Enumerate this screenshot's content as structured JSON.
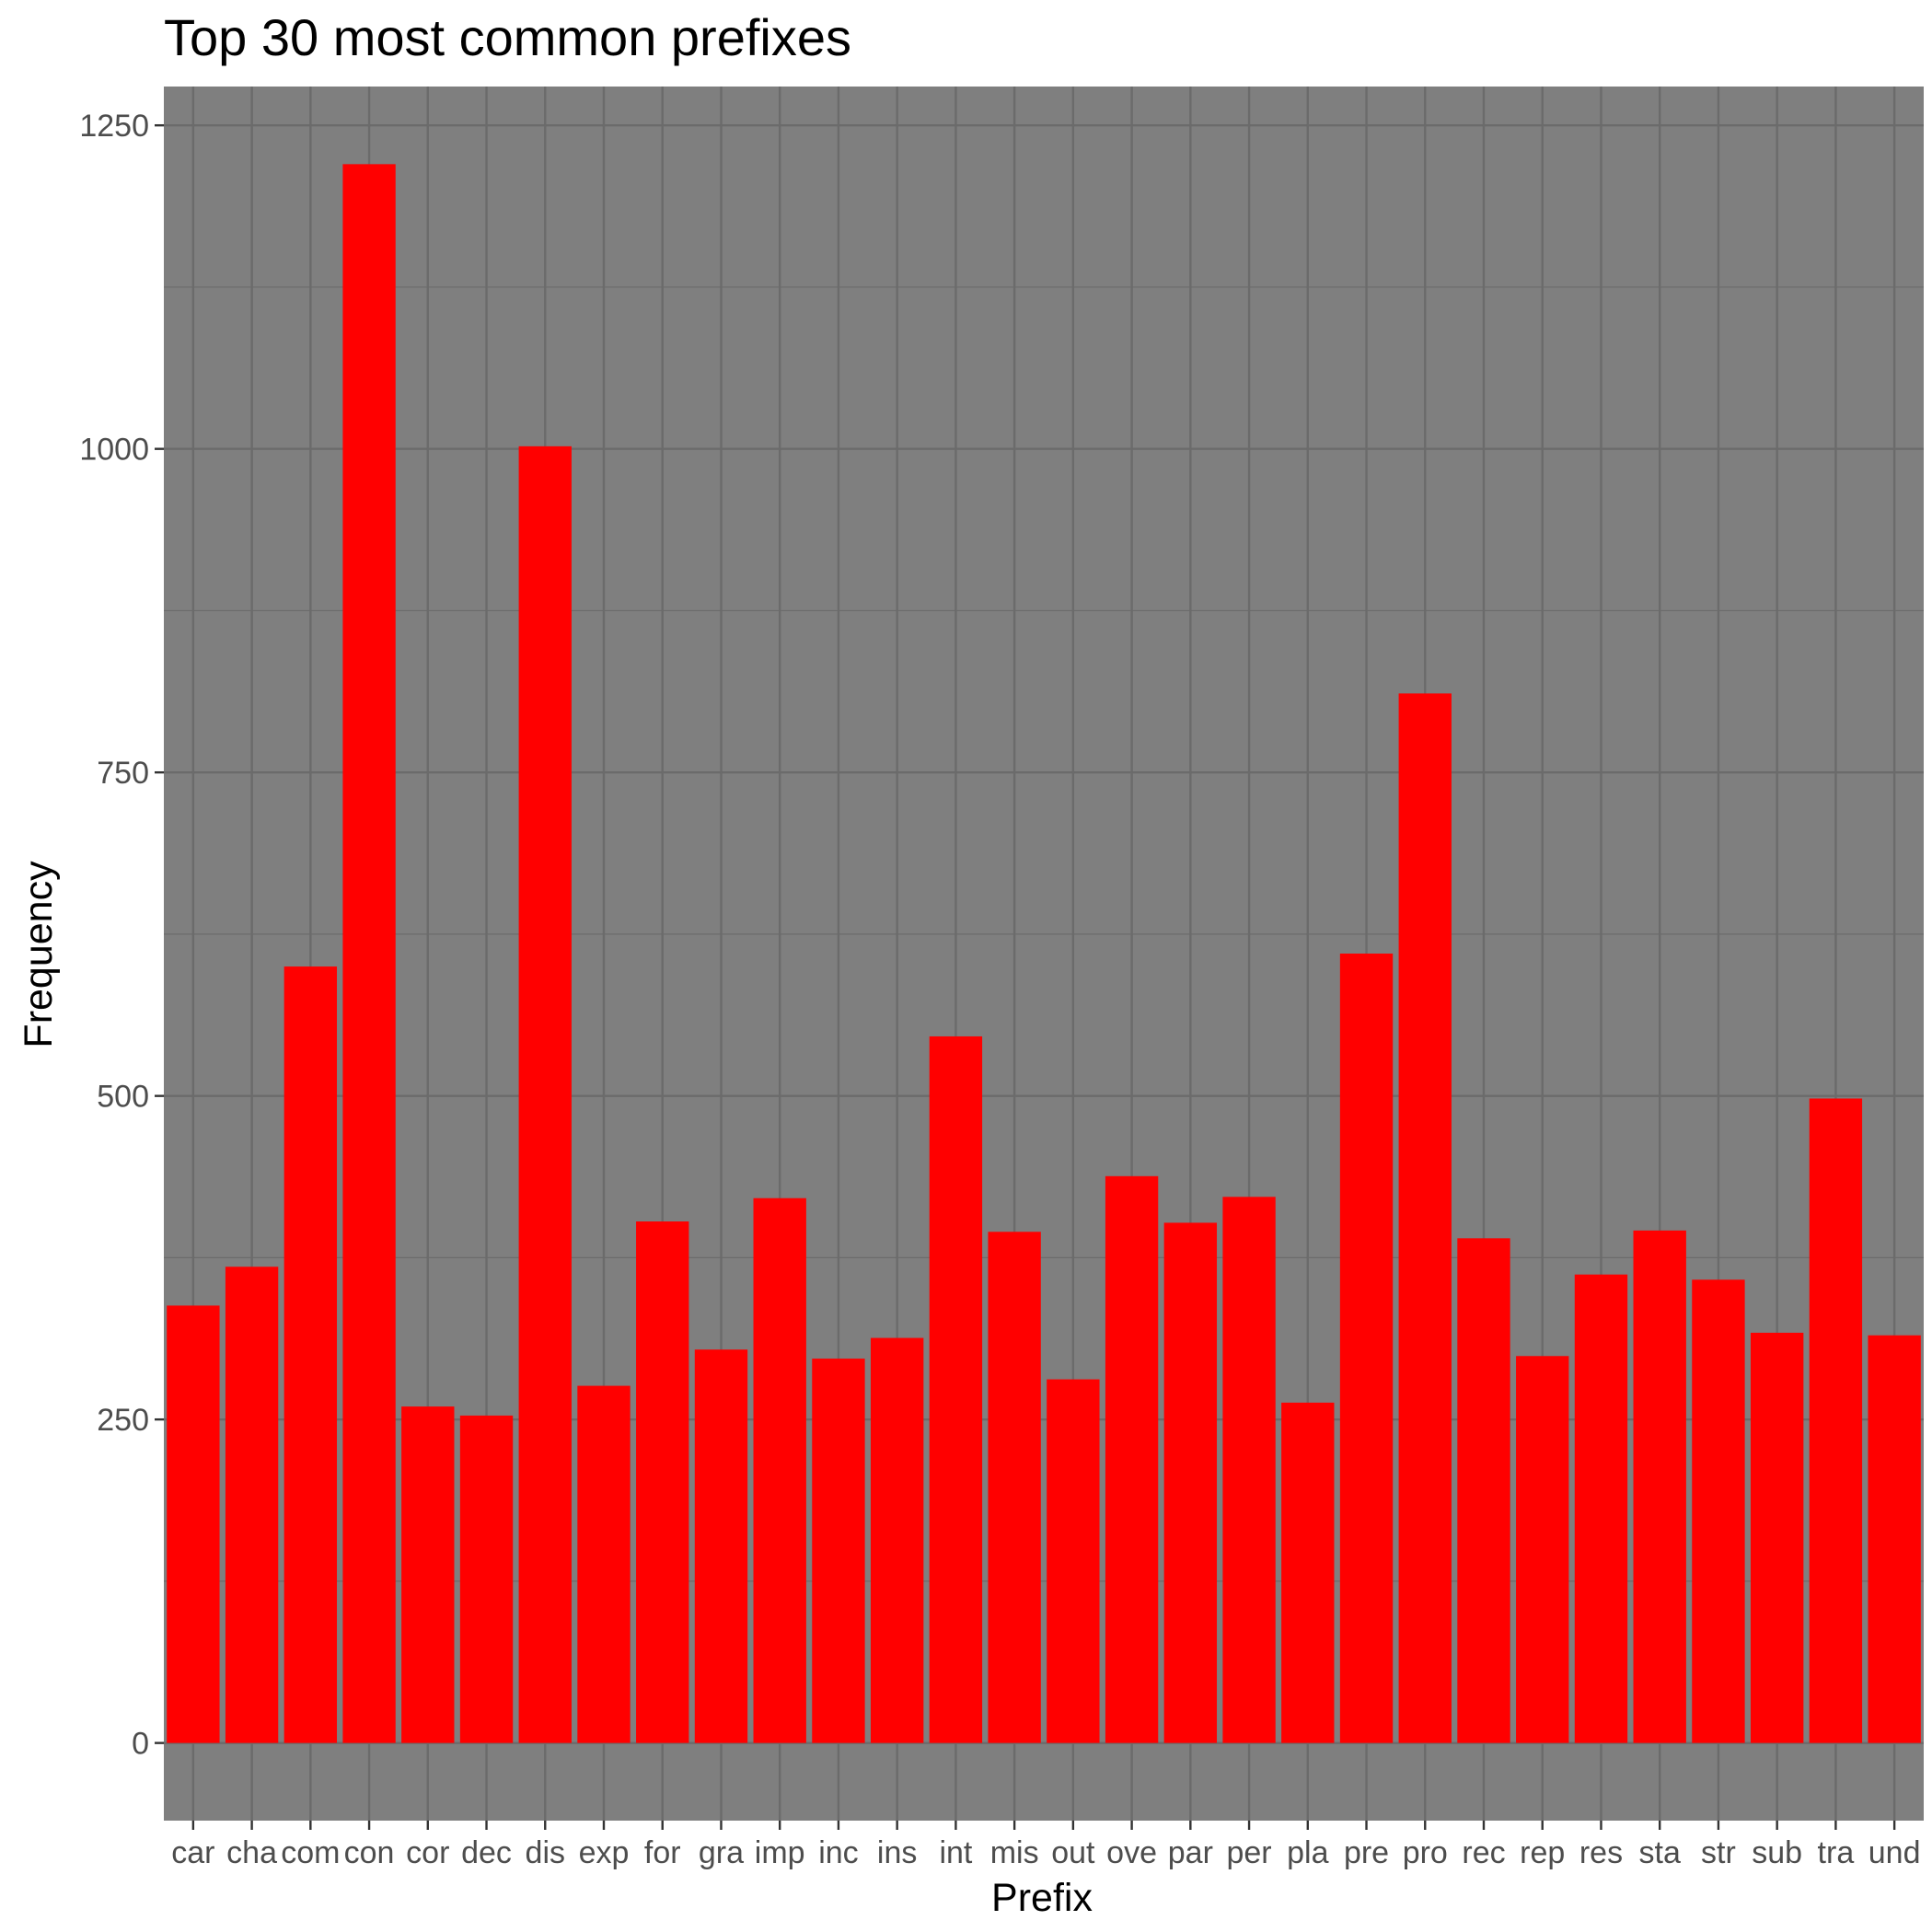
{
  "chart_data": {
    "type": "bar",
    "title": "Top 30 most common prefixes",
    "xlabel": "Prefix",
    "ylabel": "Frequency",
    "categories": [
      "car",
      "cha",
      "com",
      "con",
      "cor",
      "dec",
      "dis",
      "exp",
      "for",
      "gra",
      "imp",
      "inc",
      "ins",
      "int",
      "mis",
      "out",
      "ove",
      "par",
      "per",
      "pla",
      "pre",
      "pro",
      "rec",
      "rep",
      "res",
      "sta",
      "str",
      "sub",
      "tra",
      "und"
    ],
    "values": [
      338,
      368,
      600,
      1220,
      260,
      253,
      1002,
      276,
      403,
      304,
      421,
      297,
      313,
      546,
      395,
      281,
      438,
      402,
      422,
      263,
      610,
      811,
      390,
      299,
      362,
      396,
      358,
      317,
      498,
      315
    ],
    "y_ticks": [
      "0",
      "250",
      "500",
      "750",
      "1000",
      "1250"
    ],
    "ylim": [
      -60,
      1280
    ],
    "grid": true,
    "colors": {
      "bar": "#ff0000",
      "panel": "#7f7f7f",
      "grid": "#6b6b6b"
    }
  }
}
